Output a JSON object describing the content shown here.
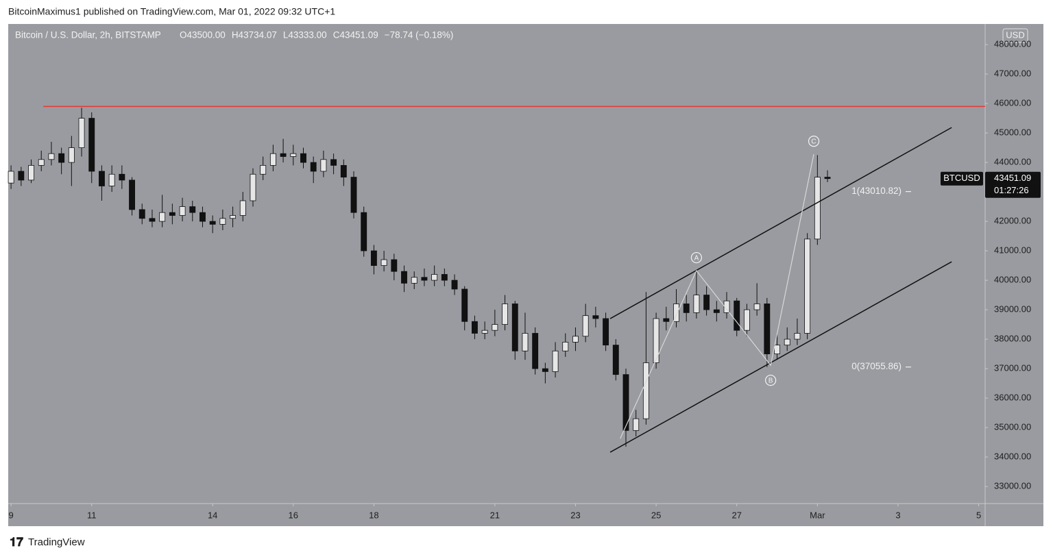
{
  "chart_data": {
    "type": "candlestick",
    "attribution": "BitcoinMaximus1 published on TradingView.com, Mar 01, 2022 09:32 UTC+1",
    "title": "Bitcoin / U.S. Dollar, 2h, BITSTAMP",
    "legend_ohlc": [
      "O43500.00",
      "H43734.07",
      "L43333.00",
      "C43451.09",
      "−78.74 (−0.18%)"
    ],
    "currency": "USD",
    "brand": "TradingView",
    "up_color": "#e6e6e6",
    "down_color": "#111111",
    "x": [
      9,
      9.25,
      9.5,
      9.75,
      10,
      10.25,
      10.5,
      10.75,
      11,
      11.25,
      11.5,
      11.75,
      12,
      12.25,
      12.5,
      12.75,
      13,
      13.25,
      13.5,
      13.75,
      14,
      14.25,
      14.5,
      14.75,
      15,
      15.25,
      15.5,
      15.75,
      16,
      16.25,
      16.5,
      16.75,
      17,
      17.25,
      17.5,
      17.75,
      18,
      18.25,
      18.5,
      18.75,
      19,
      19.25,
      19.5,
      19.75,
      20,
      20.25,
      20.5,
      20.75,
      21,
      21.25,
      21.5,
      21.75,
      22,
      22.25,
      22.5,
      22.75,
      23,
      23.25,
      23.5,
      23.75,
      24,
      24.25,
      24.5,
      24.75,
      25,
      25.25,
      25.5,
      25.75,
      26,
      26.25,
      26.5,
      26.75,
      27,
      27.25,
      27.5,
      27.75,
      28,
      28.25,
      28.5,
      28.75,
      29,
      29.25
    ],
    "open": [
      43300,
      43700,
      43400,
      43900,
      44100,
      44300,
      44000,
      44500,
      45500,
      43700,
      43200,
      43600,
      43400,
      42400,
      42100,
      42000,
      42300,
      42200,
      42500,
      42300,
      42000,
      41900,
      42100,
      42200,
      42700,
      43600,
      43900,
      44300,
      44200,
      44300,
      44000,
      43700,
      44100,
      43900,
      43500,
      42300,
      41000,
      40500,
      40700,
      40300,
      39900,
      40100,
      40000,
      40200,
      40000,
      39700,
      38600,
      38200,
      38300,
      38500,
      39200,
      37600,
      38200,
      37000,
      36900,
      37600,
      37900,
      38100,
      38800,
      38700,
      37800,
      36800,
      34900,
      35300,
      37200,
      38700,
      38600,
      39200,
      38900,
      39500,
      39000,
      38900,
      39300,
      38300,
      39000,
      39200,
      37500,
      37800,
      38000,
      38200,
      41400,
      43500
    ],
    "high": [
      43900,
      43850,
      44100,
      44400,
      44700,
      44500,
      44900,
      45855,
      45700,
      43900,
      43900,
      43900,
      43500,
      42600,
      42400,
      42900,
      42600,
      42800,
      42700,
      42500,
      42200,
      42400,
      42500,
      43000,
      43800,
      44200,
      44600,
      44800,
      44600,
      44500,
      44200,
      44400,
      44300,
      44100,
      43700,
      42500,
      41200,
      41000,
      40900,
      40500,
      40300,
      40400,
      40500,
      40400,
      40200,
      39800,
      38800,
      38600,
      39000,
      39500,
      39300,
      38900,
      38400,
      37200,
      37900,
      38200,
      38400,
      39200,
      39100,
      38900,
      38000,
      37000,
      35600,
      39600,
      38900,
      39100,
      39700,
      39500,
      40300,
      39800,
      39300,
      39600,
      39400,
      39200,
      39900,
      39400,
      38200,
      38400,
      38700,
      41600,
      44250,
      43734.07
    ],
    "low": [
      43100,
      43200,
      43300,
      43700,
      43900,
      43600,
      43200,
      44200,
      43300,
      42700,
      43000,
      43100,
      42200,
      41900,
      41800,
      41800,
      41900,
      42000,
      42000,
      41800,
      41600,
      41700,
      41800,
      42000,
      42500,
      43400,
      43700,
      44000,
      43900,
      43800,
      43300,
      43500,
      43600,
      43200,
      42100,
      40800,
      40200,
      40300,
      40000,
      39600,
      39700,
      39800,
      39800,
      39800,
      39500,
      38300,
      38000,
      38000,
      38100,
      38300,
      37300,
      37300,
      36800,
      36500,
      36700,
      37400,
      37600,
      37900,
      38400,
      37600,
      36600,
      34350,
      34700,
      35100,
      37000,
      38300,
      38400,
      38600,
      38700,
      38800,
      38600,
      38700,
      38100,
      38100,
      38800,
      37056,
      37300,
      37600,
      37800,
      38000,
      41200,
      43333.0
    ],
    "close": [
      43700,
      43400,
      43900,
      44100,
      44300,
      44000,
      44500,
      45500,
      43700,
      43200,
      43600,
      43400,
      42400,
      42100,
      42000,
      42300,
      42200,
      42500,
      42300,
      42000,
      41900,
      42100,
      42200,
      42700,
      43600,
      43900,
      44300,
      44200,
      44300,
      44000,
      43700,
      44100,
      43900,
      43500,
      42300,
      41000,
      40500,
      40700,
      40300,
      39900,
      40100,
      40000,
      40200,
      40000,
      39700,
      38600,
      38200,
      38300,
      38500,
      39200,
      37600,
      38200,
      37000,
      36900,
      37600,
      37900,
      38100,
      38800,
      38700,
      37800,
      36800,
      34900,
      35300,
      37200,
      38700,
      38600,
      39200,
      38900,
      39500,
      39000,
      38900,
      39300,
      38300,
      39000,
      39200,
      37500,
      37800,
      38000,
      38200,
      41400,
      43500,
      43451.09
    ],
    "xlim": [
      8.93,
      33.16
    ],
    "ylim": [
      32420,
      48700
    ],
    "xticks": [
      9,
      11,
      14,
      16,
      18,
      21,
      23,
      25,
      27,
      {
        "value": 29,
        "label": "Mar"
      },
      {
        "value": 31,
        "label": "3"
      },
      {
        "value": 33,
        "label": "5"
      }
    ],
    "yticks": [
      {
        "value": 33000,
        "label": "33000.00"
      },
      {
        "value": 34000,
        "label": "34000.00"
      },
      {
        "value": 35000,
        "label": "35000.00"
      },
      {
        "value": 36000,
        "label": "36000.00"
      },
      {
        "value": 37000,
        "label": "37000.00"
      },
      {
        "value": 38000,
        "label": "38000.00"
      },
      {
        "value": 39000,
        "label": "39000.00"
      },
      {
        "value": 40000,
        "label": "40000.00"
      },
      {
        "value": 41000,
        "label": "41000.00"
      },
      {
        "value": 42000,
        "label": "42000.00"
      },
      {
        "value": 43000,
        "label": "43000.00"
      },
      {
        "value": 44000,
        "label": "44000.00"
      },
      {
        "value": 45000,
        "label": "45000.00"
      },
      {
        "value": 46000,
        "label": "46000.00"
      },
      {
        "value": 47000,
        "label": "47000.00"
      },
      {
        "value": 48000,
        "label": "48000.00"
      }
    ],
    "resistance": {
      "value": 45900,
      "x_start": 9.8,
      "color": "#e53935"
    },
    "channel": [
      {
        "x": [
          23.86,
          32.33
        ],
        "y": [
          38698,
          45186
        ]
      },
      {
        "x": [
          23.86,
          32.33
        ],
        "y": [
          34163,
          40628
        ]
      }
    ],
    "wave": {
      "x": [
        24.11,
        26.0,
        27.84,
        28.91
      ],
      "y": [
        34628,
        40326,
        37116,
        44279
      ],
      "labels": [
        "A",
        "B",
        "C"
      ]
    },
    "fib_levels": [
      {
        "label": "1(43010.82)",
        "value": 43010.82
      },
      {
        "label": "0(37055.86)",
        "value": 37055.86
      }
    ],
    "last_price": {
      "symbol": "BTCUSD",
      "value": 43451.09,
      "label": "43451.09",
      "countdown": "01:27:26"
    }
  }
}
